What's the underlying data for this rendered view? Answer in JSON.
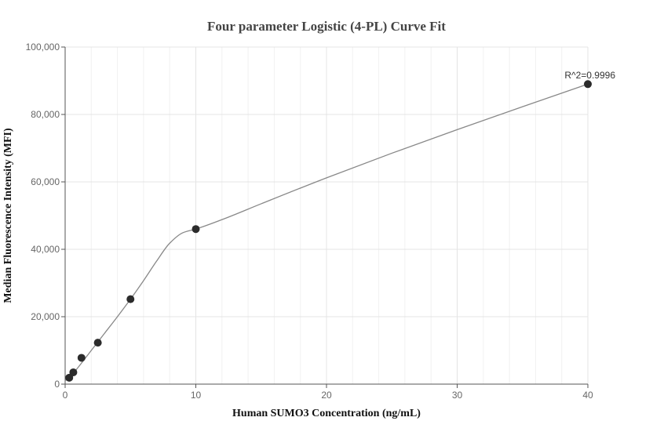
{
  "chart_data": {
    "type": "scatter",
    "title": "Four parameter Logistic (4-PL) Curve Fit",
    "xlabel": "Human SUMO3 Concentration (ng/mL)",
    "ylabel": "Median Fluorescence Intensity (MFI)",
    "xlim": [
      0,
      40
    ],
    "ylim": [
      0,
      100000
    ],
    "x_ticks": [
      0,
      10,
      20,
      30,
      40
    ],
    "x_tick_labels": [
      "0",
      "10",
      "20",
      "30",
      "40"
    ],
    "y_ticks": [
      0,
      20000,
      40000,
      60000,
      80000,
      100000
    ],
    "y_tick_labels": [
      "0",
      "20,000",
      "40,000",
      "60,000",
      "80,000",
      "100,000"
    ],
    "grid": true,
    "points": {
      "x": [
        0.313,
        0.625,
        1.25,
        2.5,
        5,
        10,
        40
      ],
      "y": [
        1900,
        3500,
        7800,
        12300,
        25200,
        46000,
        89000
      ]
    },
    "fit_curve": {
      "x": [
        0,
        0.5,
        1,
        2,
        3,
        4,
        5,
        6,
        7,
        8,
        9,
        10,
        12,
        15,
        20,
        25,
        30,
        35,
        40
      ],
      "y": [
        1000,
        2700,
        5000,
        10000,
        15000,
        20000,
        25200,
        30700,
        36500,
        41800,
        44900,
        46000,
        48800,
        53500,
        61200,
        68500,
        75500,
        82300,
        89000
      ]
    },
    "annotation": "R^2=0.9996"
  }
}
